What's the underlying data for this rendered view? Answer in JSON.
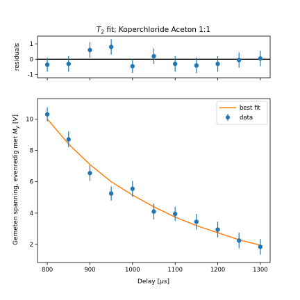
{
  "chart_data": [
    {
      "type": "scatter",
      "title_main": "T",
      "title_sub": "2",
      "title_rest": " fit; Koperchloride Aceton 1:1",
      "xlabel": "",
      "ylabel": "residuals",
      "xlim": [
        777,
        1323
      ],
      "ylim": [
        -1.2,
        1.5
      ],
      "yticks": [
        "-1",
        "0",
        "1"
      ],
      "ytick_values": [
        -1,
        0,
        1
      ],
      "zero_line": 0,
      "series": [
        {
          "color": "#1f77b4",
          "x": [
            800,
            850,
            900,
            950,
            1000,
            1050,
            1100,
            1150,
            1200,
            1250,
            1300
          ],
          "y": [
            -0.35,
            -0.3,
            0.6,
            0.8,
            -0.45,
            0.2,
            -0.3,
            -0.4,
            -0.3,
            -0.05,
            0.05
          ],
          "err": [
            0.45,
            0.5,
            0.5,
            0.5,
            0.45,
            0.5,
            0.5,
            0.5,
            0.5,
            0.5,
            0.5
          ]
        }
      ]
    },
    {
      "type": "scatter",
      "xlabel_pre": "Delay [",
      "xlabel_mu": "μs",
      "xlabel_post": "]",
      "ylabel_pre": "Gemeten spanning, evenredig met ",
      "ylabel_m": "M",
      "ylabel_sub": "y",
      "ylabel_post": " [",
      "ylabel_unit": "V",
      "ylabel_end": "]",
      "xlim": [
        777,
        1323
      ],
      "ylim": [
        0.85,
        11.3
      ],
      "xticks": [
        "800",
        "900",
        "1000",
        "1100",
        "1200",
        "1300"
      ],
      "xtick_values": [
        800,
        900,
        1000,
        1100,
        1200,
        1300
      ],
      "yticks": [
        "2",
        "4",
        "6",
        "8",
        "10"
      ],
      "ytick_values": [
        2,
        4,
        6,
        8,
        10
      ],
      "legend_position": "top-right",
      "series": [
        {
          "name": "data",
          "color": "#1f77b4",
          "x": [
            800,
            850,
            900,
            950,
            1000,
            1050,
            1100,
            1150,
            1200,
            1250,
            1300
          ],
          "y": [
            10.3,
            8.7,
            6.55,
            5.25,
            5.55,
            4.1,
            3.95,
            3.45,
            2.95,
            2.25,
            1.85
          ],
          "err": [
            0.45,
            0.5,
            0.5,
            0.45,
            0.5,
            0.5,
            0.45,
            0.5,
            0.5,
            0.5,
            0.5
          ]
        },
        {
          "name": "best fit",
          "color": "#ff7f0e",
          "x": [
            800,
            850,
            900,
            950,
            1000,
            1050,
            1100,
            1150,
            1200,
            1250,
            1300
          ],
          "y": [
            10.0,
            8.4,
            7.1,
            6.0,
            5.15,
            4.4,
            3.75,
            3.2,
            2.75,
            2.3,
            1.95
          ]
        }
      ]
    }
  ]
}
